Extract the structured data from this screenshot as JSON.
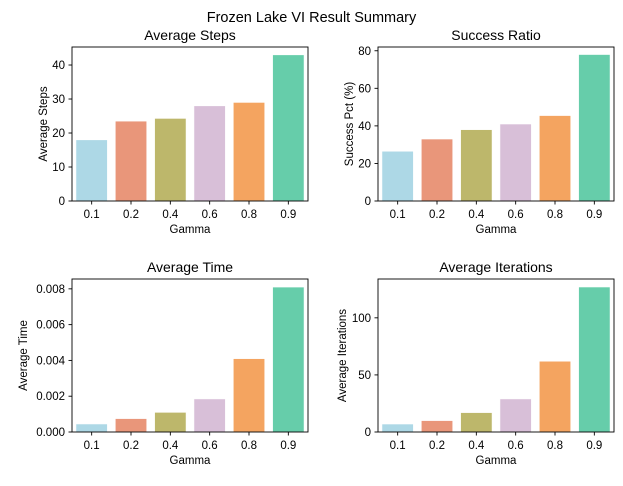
{
  "figure": {
    "suptitle": "Frozen Lake VI Result Summary"
  },
  "colors": [
    "#add8e6",
    "#e9967a",
    "#bdb76b",
    "#d8bfd8",
    "#f4a460",
    "#66cdaa"
  ],
  "chart_data": [
    {
      "type": "bar",
      "title": "Average Steps",
      "xlabel": "Gamma",
      "ylabel": "Average Steps",
      "categories": [
        "0.1",
        "0.2",
        "0.4",
        "0.6",
        "0.8",
        "0.9"
      ],
      "values": [
        18,
        23.5,
        24.3,
        28,
        29,
        43
      ],
      "ylim": [
        0,
        45.3
      ],
      "yticks": [
        0,
        10,
        20,
        30,
        40
      ],
      "ytick_labels": [
        "0",
        "10",
        "20",
        "30",
        "40"
      ]
    },
    {
      "type": "bar",
      "title": "Success Ratio",
      "xlabel": "Gamma",
      "ylabel": "Success Pct (%)",
      "categories": [
        "0.1",
        "0.2",
        "0.4",
        "0.6",
        "0.8",
        "0.9"
      ],
      "values": [
        26.5,
        33,
        38,
        41,
        45.5,
        78
      ],
      "ylim": [
        0,
        82
      ],
      "yticks": [
        0,
        20,
        40,
        60,
        80
      ],
      "ytick_labels": [
        "0",
        "20",
        "40",
        "60",
        "80"
      ]
    },
    {
      "type": "bar",
      "title": "Average Time",
      "xlabel": "Gamma",
      "ylabel": "Average Time",
      "categories": [
        "0.1",
        "0.2",
        "0.4",
        "0.6",
        "0.8",
        "0.9"
      ],
      "values": [
        0.00045,
        0.00075,
        0.0011,
        0.00185,
        0.0041,
        0.0081
      ],
      "ylim": [
        0,
        0.00855
      ],
      "yticks": [
        0,
        0.002,
        0.004,
        0.006,
        0.008
      ],
      "ytick_labels": [
        "0.000",
        "0.002",
        "0.004",
        "0.006",
        "0.008"
      ]
    },
    {
      "type": "bar",
      "title": "Average Iterations",
      "xlabel": "Gamma",
      "ylabel": "Average Iterations",
      "categories": [
        "0.1",
        "0.2",
        "0.4",
        "0.6",
        "0.8",
        "0.9"
      ],
      "values": [
        7,
        10,
        17,
        29,
        62,
        127
      ],
      "ylim": [
        0,
        134
      ],
      "yticks": [
        0,
        50,
        100
      ],
      "ytick_labels": [
        "0",
        "50",
        "100"
      ]
    }
  ]
}
